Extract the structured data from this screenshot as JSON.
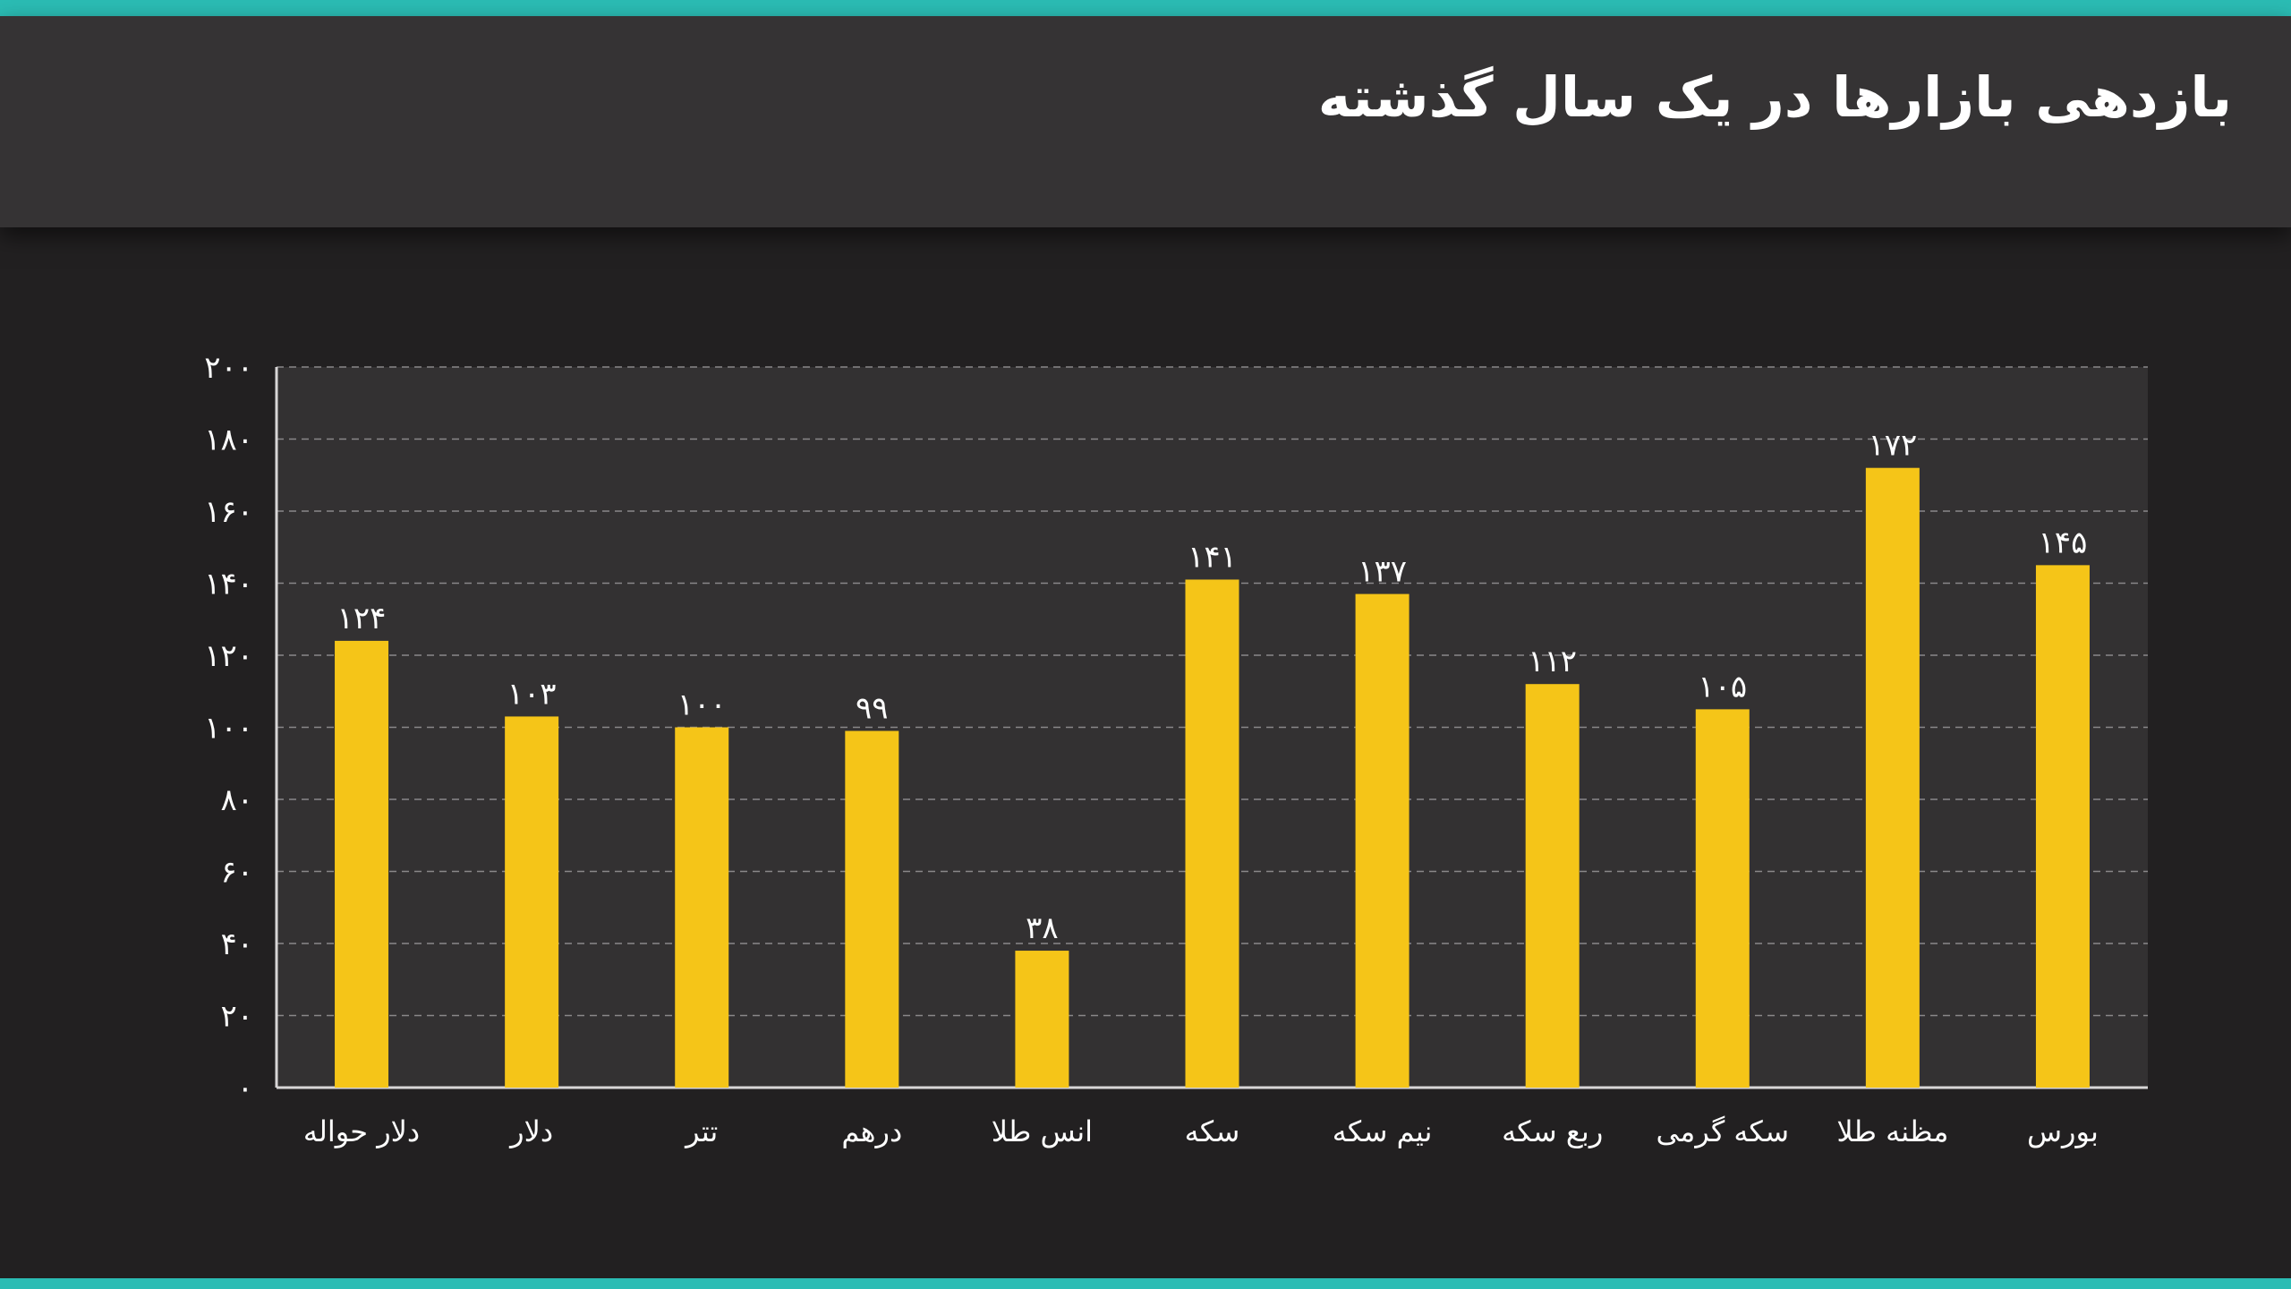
{
  "title": "بازدهی بازارها در یک سال گذشته",
  "colors": {
    "accent": "#2bbcb4",
    "bar": "#f5c518",
    "background": "#222021",
    "header": "#353334",
    "plot_area": "#333132",
    "grid": "#8a8889",
    "text": "#ffffff"
  },
  "chart_data": {
    "type": "bar",
    "categories": [
      "دلار حواله",
      "دلار",
      "تتر",
      "درهم",
      "انس طلا",
      "سکه",
      "نیم سکه",
      "ربع سکه",
      "سکه گرمی",
      "مظنه طلا",
      "بورس"
    ],
    "values": [
      124,
      103,
      100,
      99,
      38,
      141,
      137,
      112,
      105,
      172,
      145
    ],
    "value_labels": [
      "۱۲۴",
      "۱۰۳",
      "۱۰۰",
      "۹۹",
      "۳۸",
      "۱۴۱",
      "۱۳۷",
      "۱۱۲",
      "۱۰۵",
      "۱۷۲",
      "۱۴۵"
    ],
    "y_ticks": [
      0,
      20,
      40,
      60,
      80,
      100,
      120,
      140,
      160,
      180,
      200
    ],
    "y_tick_labels": [
      "۰",
      "۲۰",
      "۴۰",
      "۶۰",
      "۸۰",
      "۱۰۰",
      "۱۲۰",
      "۱۴۰",
      "۱۶۰",
      "۱۸۰",
      "۲۰۰"
    ],
    "ylim": [
      0,
      200
    ],
    "grid": true,
    "legend": false,
    "title": "بازدهی بازارها در یک سال گذشته",
    "xlabel": "",
    "ylabel": ""
  }
}
